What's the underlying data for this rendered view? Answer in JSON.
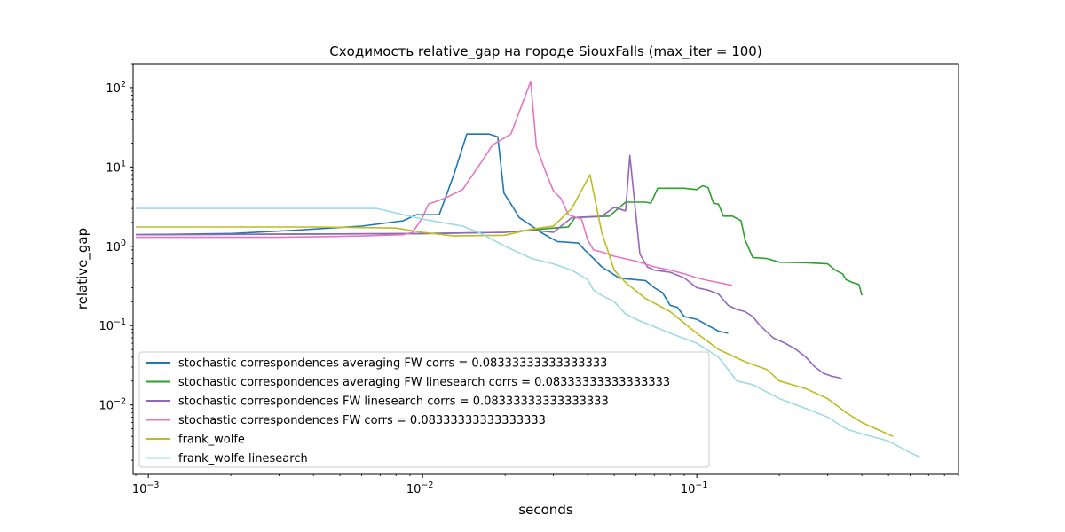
{
  "chart_data": {
    "type": "line",
    "title": "Сходимость relative_gap на городе SiouxFalls  (max_iter = 100)",
    "xlabel": "seconds",
    "ylabel": "relative_gap",
    "xscale": "log",
    "yscale": "log",
    "xlim": [
      0.00088,
      0.9
    ],
    "ylim": [
      0.00133,
      200
    ],
    "x_ticks": [
      {
        "value": 0.001,
        "label": "10",
        "exp": "−3"
      },
      {
        "value": 0.01,
        "label": "10",
        "exp": "−2"
      },
      {
        "value": 0.1,
        "label": "10",
        "exp": "−1"
      }
    ],
    "y_ticks": [
      {
        "value": 0.01,
        "label": "10",
        "exp": "−2"
      },
      {
        "value": 0.1,
        "label": "10",
        "exp": "−1"
      },
      {
        "value": 1,
        "label": "10",
        "exp": "0"
      },
      {
        "value": 10,
        "label": "10",
        "exp": "1"
      },
      {
        "value": 100,
        "label": "10",
        "exp": "2"
      }
    ],
    "grid": false,
    "legend_position": "lower-left",
    "series": [
      {
        "name": "stochastic correspondences averaging FW  corrs = 0.08333333333333333",
        "color": "#1f77b4",
        "points": [
          [
            0.0009,
            1.4
          ],
          [
            0.002,
            1.45
          ],
          [
            0.0035,
            1.6
          ],
          [
            0.006,
            1.8
          ],
          [
            0.0085,
            2.1
          ],
          [
            0.0095,
            2.5
          ],
          [
            0.0115,
            2.5
          ],
          [
            0.013,
            8
          ],
          [
            0.0145,
            26
          ],
          [
            0.0175,
            26
          ],
          [
            0.0188,
            24
          ],
          [
            0.0198,
            4.7
          ],
          [
            0.0215,
            3
          ],
          [
            0.0225,
            2.3
          ],
          [
            0.0245,
            1.9
          ],
          [
            0.027,
            1.5
          ],
          [
            0.029,
            1.3
          ],
          [
            0.031,
            1.15
          ],
          [
            0.037,
            1.1
          ],
          [
            0.039,
            0.9
          ],
          [
            0.042,
            0.7
          ],
          [
            0.045,
            0.55
          ],
          [
            0.048,
            0.48
          ],
          [
            0.052,
            0.4
          ],
          [
            0.055,
            0.39
          ],
          [
            0.065,
            0.37
          ],
          [
            0.07,
            0.3
          ],
          [
            0.075,
            0.26
          ],
          [
            0.08,
            0.18
          ],
          [
            0.085,
            0.17
          ],
          [
            0.09,
            0.13
          ],
          [
            0.1,
            0.12
          ],
          [
            0.11,
            0.1
          ],
          [
            0.12,
            0.085
          ],
          [
            0.13,
            0.08
          ]
        ]
      },
      {
        "name": "stochastic correspondences averaging FW linesearch corrs = 0.08333333333333333",
        "color": "#2ca02c",
        "points": [
          [
            0.0009,
            1.4
          ],
          [
            0.01,
            1.45
          ],
          [
            0.02,
            1.5
          ],
          [
            0.03,
            1.7
          ],
          [
            0.034,
            1.75
          ],
          [
            0.036,
            2.3
          ],
          [
            0.048,
            2.4
          ],
          [
            0.055,
            3.6
          ],
          [
            0.065,
            3.6
          ],
          [
            0.068,
            3.5
          ],
          [
            0.072,
            5.4
          ],
          [
            0.09,
            5.4
          ],
          [
            0.1,
            5.2
          ],
          [
            0.105,
            5.8
          ],
          [
            0.11,
            5.5
          ],
          [
            0.115,
            3.5
          ],
          [
            0.12,
            3.4
          ],
          [
            0.125,
            2.4
          ],
          [
            0.135,
            2.4
          ],
          [
            0.145,
            2.1
          ],
          [
            0.15,
            1.2
          ],
          [
            0.16,
            0.72
          ],
          [
            0.18,
            0.7
          ],
          [
            0.2,
            0.63
          ],
          [
            0.25,
            0.62
          ],
          [
            0.3,
            0.6
          ],
          [
            0.32,
            0.5
          ],
          [
            0.34,
            0.45
          ],
          [
            0.35,
            0.38
          ],
          [
            0.37,
            0.35
          ],
          [
            0.39,
            0.33
          ],
          [
            0.4,
            0.24
          ]
        ]
      },
      {
        "name": "stochastic correspondences FW linesearch corrs = 0.08333333333333333",
        "color": "#9467bd",
        "points": [
          [
            0.0009,
            1.4
          ],
          [
            0.01,
            1.45
          ],
          [
            0.02,
            1.5
          ],
          [
            0.025,
            1.6
          ],
          [
            0.03,
            1.5
          ],
          [
            0.035,
            2.3
          ],
          [
            0.045,
            2.4
          ],
          [
            0.05,
            3.1
          ],
          [
            0.055,
            2.8
          ],
          [
            0.057,
            14
          ],
          [
            0.062,
            0.8
          ],
          [
            0.066,
            0.55
          ],
          [
            0.07,
            0.5
          ],
          [
            0.08,
            0.47
          ],
          [
            0.09,
            0.4
          ],
          [
            0.1,
            0.3
          ],
          [
            0.11,
            0.28
          ],
          [
            0.12,
            0.25
          ],
          [
            0.13,
            0.18
          ],
          [
            0.14,
            0.16
          ],
          [
            0.15,
            0.15
          ],
          [
            0.16,
            0.13
          ],
          [
            0.17,
            0.1
          ],
          [
            0.19,
            0.07
          ],
          [
            0.21,
            0.06
          ],
          [
            0.23,
            0.05
          ],
          [
            0.25,
            0.04
          ],
          [
            0.27,
            0.03
          ],
          [
            0.29,
            0.025
          ],
          [
            0.31,
            0.023
          ],
          [
            0.33,
            0.022
          ],
          [
            0.34,
            0.021
          ]
        ]
      },
      {
        "name": "stochastic correspondences FW corrs = 0.08333333333333333",
        "color": "#e377c2",
        "points": [
          [
            0.0009,
            1.3
          ],
          [
            0.003,
            1.3
          ],
          [
            0.006,
            1.35
          ],
          [
            0.0085,
            1.4
          ],
          [
            0.0092,
            1.5
          ],
          [
            0.01,
            2.3
          ],
          [
            0.0105,
            3.4
          ],
          [
            0.012,
            4.0
          ],
          [
            0.014,
            5.2
          ],
          [
            0.0165,
            12
          ],
          [
            0.018,
            19
          ],
          [
            0.021,
            26
          ],
          [
            0.0248,
            120
          ],
          [
            0.026,
            18
          ],
          [
            0.028,
            9
          ],
          [
            0.03,
            5
          ],
          [
            0.032,
            4
          ],
          [
            0.034,
            2.5
          ],
          [
            0.038,
            2.2
          ],
          [
            0.04,
            1.2
          ],
          [
            0.042,
            0.9
          ],
          [
            0.045,
            0.85
          ],
          [
            0.05,
            0.75
          ],
          [
            0.06,
            0.65
          ],
          [
            0.07,
            0.55
          ],
          [
            0.08,
            0.5
          ],
          [
            0.09,
            0.45
          ],
          [
            0.1,
            0.4
          ],
          [
            0.11,
            0.37
          ],
          [
            0.12,
            0.35
          ],
          [
            0.135,
            0.32
          ]
        ]
      },
      {
        "name": "frank_wolfe",
        "color": "#bcbd22",
        "points": [
          [
            0.0009,
            1.75
          ],
          [
            0.004,
            1.75
          ],
          [
            0.008,
            1.7
          ],
          [
            0.01,
            1.5
          ],
          [
            0.013,
            1.35
          ],
          [
            0.02,
            1.38
          ],
          [
            0.025,
            1.65
          ],
          [
            0.03,
            1.8
          ],
          [
            0.035,
            3
          ],
          [
            0.0408,
            8
          ],
          [
            0.045,
            1.5
          ],
          [
            0.05,
            0.5
          ],
          [
            0.055,
            0.35
          ],
          [
            0.065,
            0.22
          ],
          [
            0.08,
            0.15
          ],
          [
            0.1,
            0.08
          ],
          [
            0.12,
            0.05
          ],
          [
            0.15,
            0.035
          ],
          [
            0.18,
            0.028
          ],
          [
            0.2,
            0.02
          ],
          [
            0.25,
            0.016
          ],
          [
            0.3,
            0.012
          ],
          [
            0.35,
            0.008
          ],
          [
            0.4,
            0.006
          ],
          [
            0.45,
            0.005
          ],
          [
            0.52,
            0.004
          ]
        ]
      },
      {
        "name": "frank_wolfe linesearch",
        "color": "#9edae5",
        "points": [
          [
            0.0009,
            3.0
          ],
          [
            0.0068,
            3.0
          ],
          [
            0.01,
            2.2
          ],
          [
            0.014,
            1.8
          ],
          [
            0.016,
            1.5
          ],
          [
            0.02,
            1.0
          ],
          [
            0.025,
            0.7
          ],
          [
            0.03,
            0.6
          ],
          [
            0.035,
            0.5
          ],
          [
            0.04,
            0.38
          ],
          [
            0.042,
            0.28
          ],
          [
            0.045,
            0.24
          ],
          [
            0.05,
            0.2
          ],
          [
            0.055,
            0.14
          ],
          [
            0.06,
            0.12
          ],
          [
            0.08,
            0.08
          ],
          [
            0.1,
            0.06
          ],
          [
            0.12,
            0.04
          ],
          [
            0.14,
            0.02
          ],
          [
            0.16,
            0.018
          ],
          [
            0.2,
            0.012
          ],
          [
            0.25,
            0.009
          ],
          [
            0.3,
            0.007
          ],
          [
            0.35,
            0.005
          ],
          [
            0.4,
            0.0043
          ],
          [
            0.5,
            0.0035
          ],
          [
            0.6,
            0.0025
          ],
          [
            0.65,
            0.0022
          ]
        ]
      }
    ]
  }
}
